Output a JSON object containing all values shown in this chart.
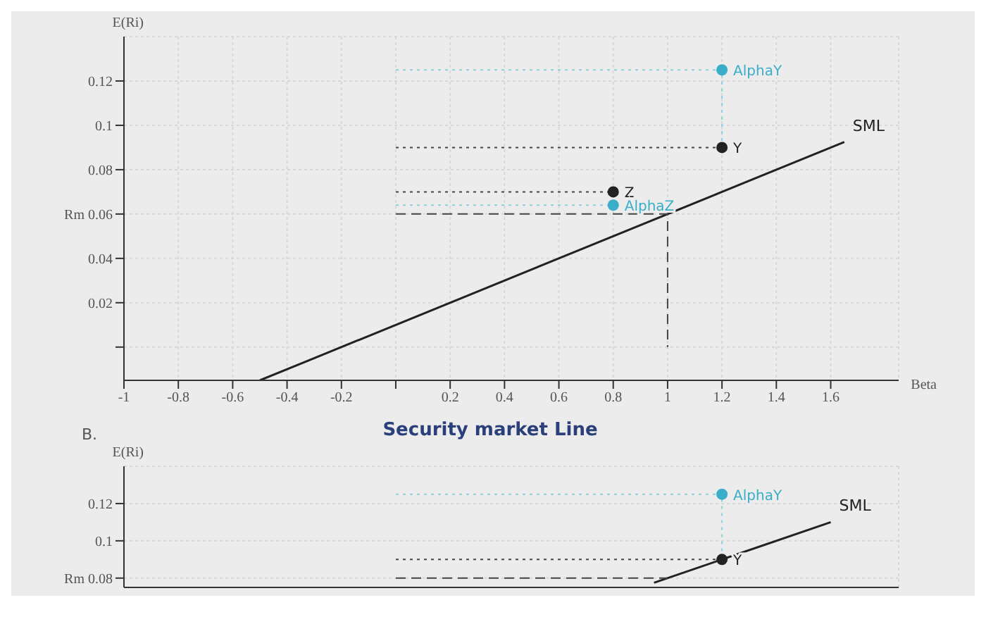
{
  "chart_data": [
    {
      "type": "line",
      "title": "Security market Line",
      "xlabel": "Beta",
      "ylabel": "E(Ri)",
      "annotations": [
        "B."
      ],
      "xlim": [
        -1,
        1.85
      ],
      "xticks": [
        -1,
        -0.8,
        -0.6,
        -0.4,
        -0.2,
        {
          "value": 0,
          "label": null
        },
        0.2,
        0.4,
        0.6,
        0.8,
        1,
        1.2,
        1.4,
        1.6
      ],
      "ylim": [
        -0.015,
        0.14
      ],
      "yticks": [
        {
          "value": 0,
          "label": null
        },
        0.02,
        0.04,
        {
          "value": 0.06,
          "label": "Rm 0.06"
        },
        0.08,
        0.1,
        0.12
      ],
      "grid": true,
      "series": [
        {
          "type": "line",
          "name": "SML",
          "color": "#222222",
          "x": [
            -0.5,
            1.65
          ],
          "values": [
            -0.015,
            0.0925
          ],
          "line_style": "solid"
        },
        {
          "type": "line",
          "color": "#444444",
          "x": [
            0,
            1,
            1
          ],
          "values": [
            0.06,
            0.06,
            0
          ],
          "line_style": "dashed"
        },
        {
          "type": "line",
          "color": "#444444",
          "x": [
            0,
            1.2
          ],
          "values": [
            0.09,
            0.09
          ],
          "line_style": "dotted"
        },
        {
          "type": "line",
          "color": "#444444",
          "x": [
            0,
            0.8
          ],
          "values": [
            0.07,
            0.07
          ],
          "line_style": "dotted"
        },
        {
          "type": "line",
          "color": "#8fcfdc",
          "x": [
            0,
            0.8
          ],
          "values": [
            0.064,
            0.064
          ],
          "line_style": "dotted"
        },
        {
          "type": "line",
          "color": "#8fcfdc",
          "x": [
            0,
            1.2,
            1.2
          ],
          "values": [
            0.125,
            0.125,
            0.09
          ],
          "line_style": "dotted"
        },
        {
          "type": "scatter",
          "name": "Y",
          "color": "#222222",
          "x": [
            1.2
          ],
          "values": [
            0.09
          ],
          "marker": "circle"
        },
        {
          "type": "scatter",
          "name": "AlphaY",
          "color": "#3aaec8",
          "x": [
            1.2
          ],
          "values": [
            0.125
          ],
          "marker": "circle"
        },
        {
          "type": "scatter",
          "name": "Z",
          "color": "#222222",
          "x": [
            0.8
          ],
          "values": [
            0.07
          ],
          "marker": "circle"
        },
        {
          "type": "scatter",
          "name": "AlphaZ",
          "color": "#3aaec8",
          "x": [
            0.8
          ],
          "values": [
            0.064
          ],
          "marker": "circle"
        }
      ]
    },
    {
      "type": "line",
      "ylabel": "E(Ri)",
      "xlim": [
        -1,
        1.85
      ],
      "ylim": [
        0.075,
        0.14
      ],
      "yticks": [
        {
          "value": 0.08,
          "label": "Rm 0.08"
        },
        0.1,
        0.12
      ],
      "tick_labels": "y",
      "grid": true,
      "series": [
        {
          "type": "line",
          "name": "SML",
          "color": "#222222",
          "x": [
            0.95,
            1.6
          ],
          "values": [
            0.0775,
            0.11
          ],
          "line_style": "solid"
        },
        {
          "type": "line",
          "color": "#444444",
          "x": [
            0,
            1
          ],
          "values": [
            0.08,
            0.08
          ],
          "line_style": "dashed"
        },
        {
          "type": "line",
          "color": "#444444",
          "x": [
            0,
            1.2
          ],
          "values": [
            0.09,
            0.09
          ],
          "line_style": "dotted"
        },
        {
          "type": "line",
          "color": "#8fcfdc",
          "x": [
            0,
            1.2,
            1.2
          ],
          "values": [
            0.125,
            0.125,
            0.09
          ],
          "line_style": "dotted"
        },
        {
          "type": "scatter",
          "name": "Y",
          "color": "#222222",
          "x": [
            1.2
          ],
          "values": [
            0.09
          ],
          "marker": "circle"
        },
        {
          "type": "scatter",
          "name": "AlphaY",
          "color": "#3aaec8",
          "x": [
            1.2
          ],
          "values": [
            0.125
          ],
          "marker": "circle"
        }
      ]
    }
  ]
}
